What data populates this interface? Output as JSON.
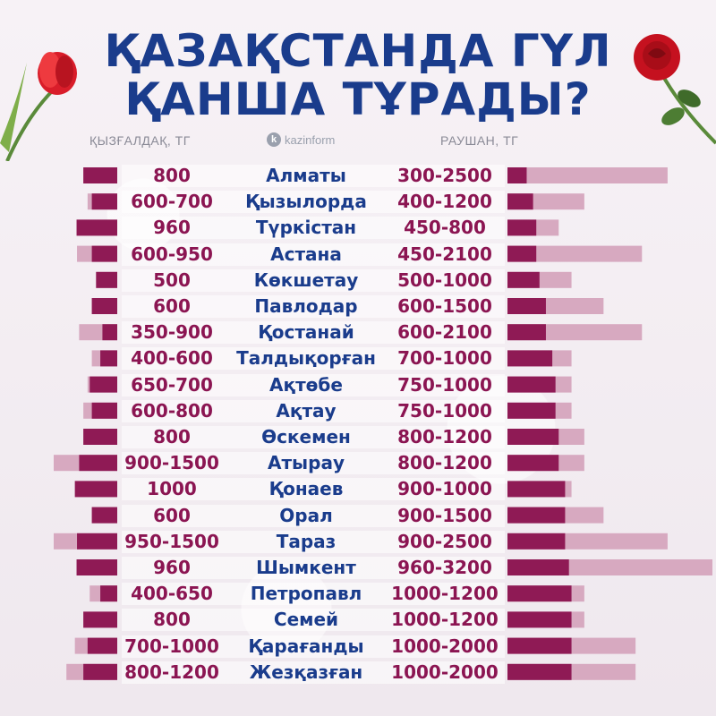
{
  "title_lines": [
    "ҚАЗАҚСТАНДА ГҮЛ",
    "ҚАНША ТҰРАДЫ?"
  ],
  "left_header": "ҚЫЗҒАЛДАҚ, ТГ",
  "right_header": "РАУШАН, ТГ",
  "logo_text": "kazinform",
  "logo_letter": "k",
  "colors": {
    "title": "#1a3c8c",
    "price": "#8b1552",
    "bar_min": "#8f1a55",
    "bar_max": "#d7a9c0"
  },
  "chart_data": {
    "type": "bar",
    "categories": [
      "Алматы",
      "Қызылорда",
      "Түркістан",
      "Астана",
      "Көкшетау",
      "Павлодар",
      "Қостанай",
      "Талдықорған",
      "Ақтөбе",
      "Ақтау",
      "Өскемен",
      "Атырау",
      "Қонаев",
      "Орал",
      "Тараз",
      "Шымкент",
      "Петропавл",
      "Семей",
      "Қарағанды",
      "Жезқазған"
    ],
    "series": [
      {
        "name": "ҚЫЗҒАЛДАҚ, ТГ",
        "labels": [
          "800",
          "600-700",
          "960",
          "600-950",
          "500",
          "600",
          "350-900",
          "400-600",
          "650-700",
          "600-800",
          "800",
          "900-1500",
          "1000",
          "600",
          "950-1500",
          "960",
          "400-650",
          "800",
          "700-1000",
          "800-1200"
        ],
        "min": [
          800,
          600,
          960,
          600,
          500,
          600,
          350,
          400,
          650,
          600,
          800,
          900,
          1000,
          600,
          950,
          960,
          400,
          800,
          700,
          800
        ],
        "max": [
          800,
          700,
          960,
          950,
          500,
          600,
          900,
          600,
          700,
          800,
          800,
          1500,
          1000,
          600,
          1500,
          960,
          650,
          800,
          1000,
          1200
        ]
      },
      {
        "name": "РАУШАН, ТГ",
        "labels": [
          "300-2500",
          "400-1200",
          "450-800",
          "450-2100",
          "500-1000",
          "600-1500",
          "600-2100",
          "700-1000",
          "750-1000",
          "750-1000",
          "800-1200",
          "800-1200",
          "900-1000",
          "900-1500",
          "900-2500",
          "960-3200",
          "1000-1200",
          "1000-1200",
          "1000-2000",
          "1000-2000"
        ],
        "min": [
          300,
          400,
          450,
          450,
          500,
          600,
          600,
          700,
          750,
          750,
          800,
          800,
          900,
          900,
          900,
          960,
          1000,
          1000,
          1000,
          1000
        ],
        "max": [
          2500,
          1200,
          800,
          2100,
          1000,
          1500,
          2100,
          1000,
          1000,
          1000,
          1200,
          1200,
          1000,
          1500,
          2500,
          3200,
          1200,
          1200,
          2000,
          2000
        ]
      }
    ]
  }
}
